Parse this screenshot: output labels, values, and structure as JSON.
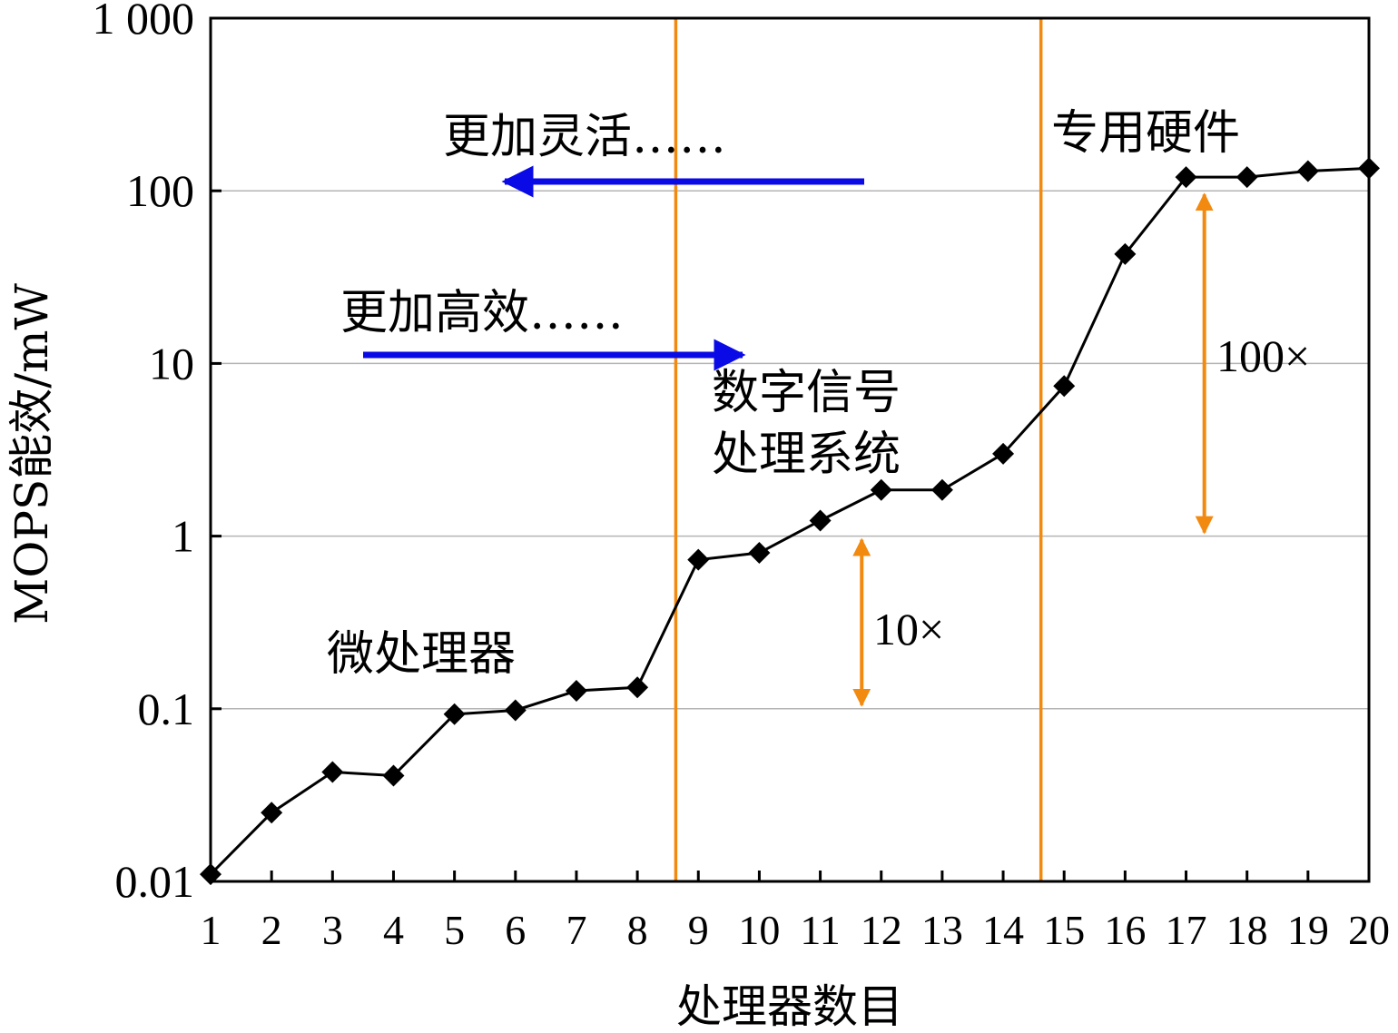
{
  "chart_data": {
    "type": "line",
    "xlabel": "处理器数目",
    "ylabel": "MOPS能效/mW",
    "y_scale": "log",
    "ylim": [
      0.01,
      1000
    ],
    "xlim": [
      1,
      20
    ],
    "grid": "horizontal",
    "y_tick_labels": [
      "0.01",
      "0.1",
      "1",
      "10",
      "100",
      "1 000"
    ],
    "y_tick_values": [
      0.01,
      0.1,
      1,
      10,
      100,
      1000
    ],
    "x": [
      1,
      2,
      3,
      4,
      5,
      6,
      7,
      8,
      9,
      10,
      11,
      12,
      13,
      14,
      15,
      16,
      17,
      18,
      19,
      20
    ],
    "x_tick_labels": [
      "1",
      "2",
      "3",
      "4",
      "5",
      "6",
      "7",
      "8",
      "9",
      "10",
      "11",
      "12",
      "13",
      "14",
      "15",
      "16",
      "17",
      "18",
      "19",
      "20"
    ],
    "series": [
      {
        "values": [
          0.011,
          0.025,
          0.043,
          0.041,
          0.093,
          0.098,
          0.127,
          0.133,
          0.73,
          0.8,
          1.23,
          1.85,
          1.85,
          3.0,
          7.4,
          43,
          120,
          120,
          130,
          135
        ]
      }
    ],
    "color": "#000000",
    "marker": "diamond",
    "dividers": {
      "x": [
        8.63,
        14.62
      ],
      "color": "#f28a10"
    },
    "annotations": {
      "flexible": "更加灵活……",
      "efficient": "更加高效……",
      "dsp_line1": "数字信号",
      "dsp_line2": "处理系统",
      "asic": "专用硬件",
      "micro": "微处理器",
      "gap_small": "10×",
      "gap_large": "100×"
    },
    "arrow_color": "#0a0ae6",
    "range_arrow_color": "#f28a10",
    "range_arrows": [
      {
        "x": 11.68,
        "from": 1,
        "to": 0.1
      },
      {
        "x": 17.3,
        "from": 100,
        "to": 1
      }
    ]
  }
}
